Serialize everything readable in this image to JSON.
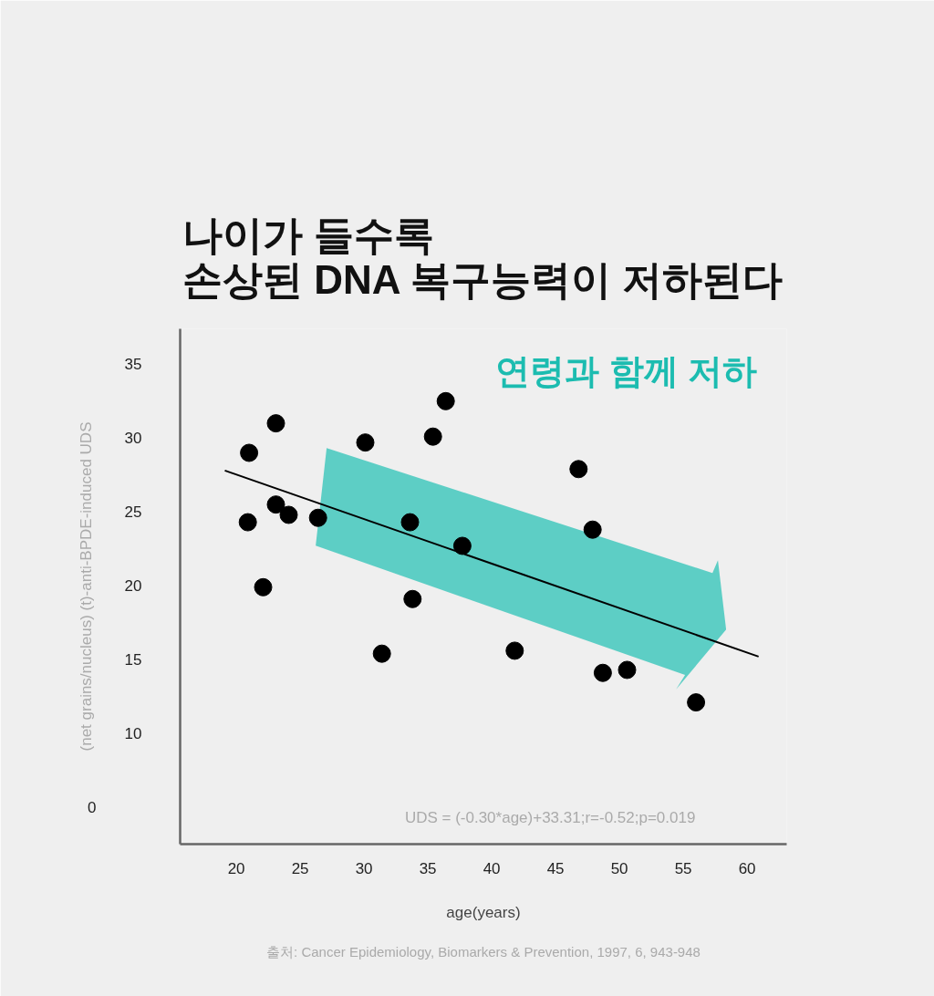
{
  "chart_data": {
    "type": "scatter",
    "title": "나이가 들수록\n손상된 DNA 복구능력이 저하된다",
    "xlabel": "age(years)",
    "ylabel": "(net grains/nucleus) (t)-anti-BPDE-induced UDS",
    "annotations": [
      "연령과 함께 저하",
      "UDS = (-0.30*age)+33.31;r=-0.52;p=0.019",
      "출처: Cancer Epidemiology, Biomarkers & Prevention, 1997, 6, 943-948",
      "0"
    ],
    "xlim": [
      15.6,
      63.1
    ],
    "ylim": [
      2.5,
      37.4
    ],
    "xticks": [
      20,
      25,
      30,
      35,
      40,
      45,
      50,
      55,
      60
    ],
    "yticks": [
      10,
      15,
      20,
      25,
      30,
      35
    ],
    "grid": false,
    "marker": "circle",
    "series": [
      {
        "color": "#000000",
        "x": [
          21.0,
          23.1,
          20.9,
          23.1,
          24.1,
          22.1,
          26.4,
          30.1,
          31.4,
          33.6,
          33.8,
          35.4,
          36.4,
          37.7,
          41.8,
          46.8,
          47.9,
          48.7,
          50.6,
          56.0
        ],
        "values": [
          29.0,
          31.0,
          24.3,
          25.5,
          24.8,
          19.9,
          24.6,
          29.7,
          15.4,
          24.3,
          19.1,
          30.1,
          32.5,
          22.7,
          15.6,
          27.9,
          23.8,
          14.1,
          14.3,
          12.1
        ]
      },
      {
        "type": "line",
        "marker": "none",
        "color": "#000000",
        "x": [
          19.1,
          60.9
        ],
        "values": [
          27.8,
          15.2
        ]
      }
    ]
  }
}
